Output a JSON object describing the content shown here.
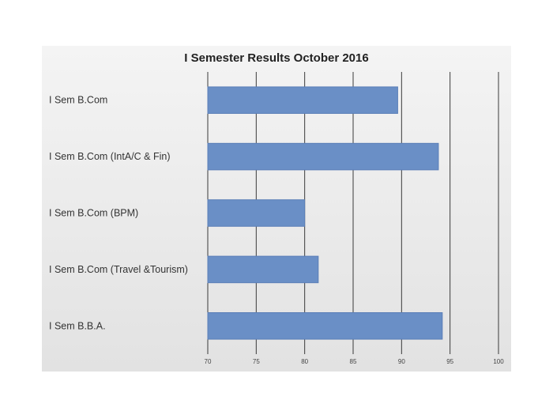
{
  "chart_data": {
    "type": "bar",
    "orientation": "horizontal",
    "title": "I Semester Results October 2016",
    "categories": [
      "I Sem B.Com",
      "I Sem B.Com (IntA/C & Fin)",
      "I Sem B.Com (BPM)",
      "I Sem B.Com (Travel &Tourism)",
      "I Sem B.B.A."
    ],
    "values": [
      89.6,
      93.8,
      80,
      81.4,
      94.2
    ],
    "xlim": [
      70,
      100
    ],
    "xticks": [
      "70",
      "75",
      "80",
      "85",
      "90",
      "95",
      "100"
    ],
    "grid": true,
    "legend": "none",
    "bar_color": "#6a8fc6",
    "bar_border_color": "#5b7fb8"
  }
}
